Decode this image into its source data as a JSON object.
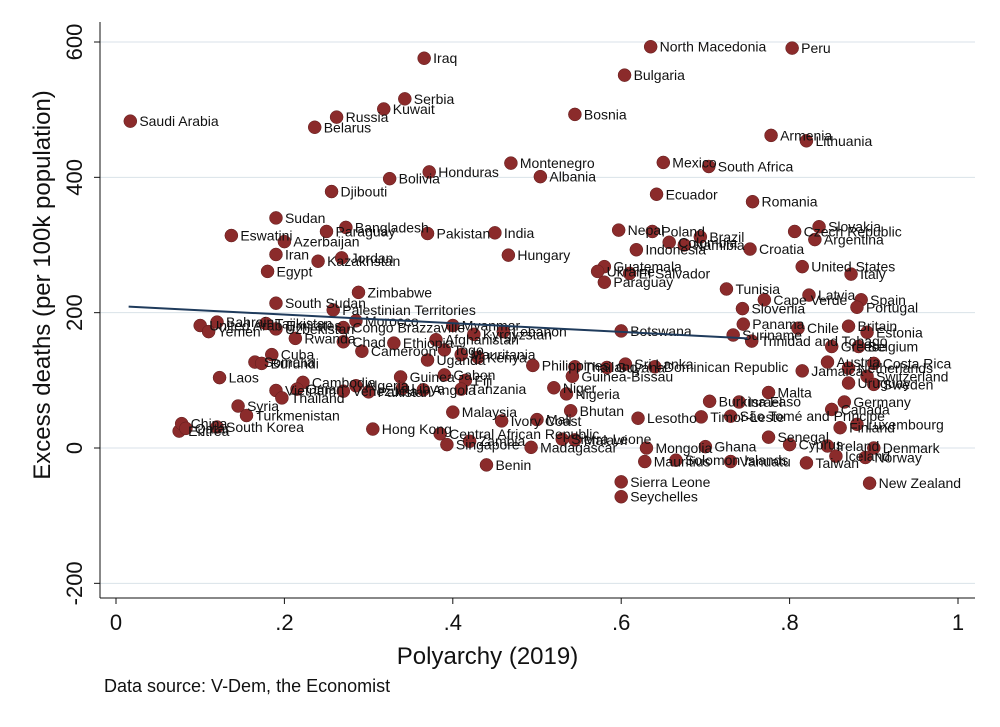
{
  "chart_data": {
    "type": "scatter",
    "xlabel": "Polyarchy (2019)",
    "ylabel": "Excess deaths (per 100k population)",
    "xlim": [
      0,
      1.0
    ],
    "ylim": [
      -200,
      620
    ],
    "xticks": [
      {
        "v": 0,
        "label": "0"
      },
      {
        "v": 0.2,
        "label": ".2"
      },
      {
        "v": 0.4,
        "label": ".4"
      },
      {
        "v": 0.6,
        "label": ".6"
      },
      {
        "v": 0.8,
        "label": ".8"
      },
      {
        "v": 1,
        "label": "1"
      }
    ],
    "yticks": [
      {
        "v": -200,
        "label": "-200"
      },
      {
        "v": 0,
        "label": "0"
      },
      {
        "v": 200,
        "label": "200"
      },
      {
        "v": 400,
        "label": "400"
      },
      {
        "v": 600,
        "label": "600"
      }
    ],
    "grid": true,
    "marker_color": "#8b2b2b",
    "fit_line": {
      "x": [
        0.015,
        0.75
      ],
      "y": [
        209,
        162
      ],
      "color": "#1f3b5c"
    },
    "points": [
      {
        "name": "Saudi Arabia",
        "x": 0.017,
        "y": 483
      },
      {
        "name": "Iraq",
        "x": 0.366,
        "y": 576
      },
      {
        "name": "Serbia",
        "x": 0.343,
        "y": 516
      },
      {
        "name": "Kuwait",
        "x": 0.318,
        "y": 501
      },
      {
        "name": "Russia",
        "x": 0.262,
        "y": 489
      },
      {
        "name": "Belarus",
        "x": 0.236,
        "y": 474
      },
      {
        "name": "North Macedonia",
        "x": 0.635,
        "y": 593
      },
      {
        "name": "Peru",
        "x": 0.803,
        "y": 591
      },
      {
        "name": "Bulgaria",
        "x": 0.604,
        "y": 551
      },
      {
        "name": "Bosnia",
        "x": 0.545,
        "y": 493
      },
      {
        "name": "Armenia",
        "x": 0.778,
        "y": 462
      },
      {
        "name": "Lithuania",
        "x": 0.82,
        "y": 454
      },
      {
        "name": "Montenegro",
        "x": 0.469,
        "y": 421
      },
      {
        "name": "Mexico",
        "x": 0.65,
        "y": 422
      },
      {
        "name": "South Africa",
        "x": 0.704,
        "y": 416
      },
      {
        "name": "Honduras",
        "x": 0.372,
        "y": 408
      },
      {
        "name": "Albania",
        "x": 0.504,
        "y": 401
      },
      {
        "name": "Bolivia",
        "x": 0.325,
        "y": 398
      },
      {
        "name": "Djibouti",
        "x": 0.256,
        "y": 379
      },
      {
        "name": "Ecuador",
        "x": 0.642,
        "y": 375
      },
      {
        "name": "Romania",
        "x": 0.756,
        "y": 364
      },
      {
        "name": "Sudan",
        "x": 0.19,
        "y": 340
      },
      {
        "name": "Bangladesh",
        "x": 0.273,
        "y": 326
      },
      {
        "name": "Paraguay",
        "x": 0.25,
        "y": 320
      },
      {
        "name": "Pakistan",
        "x": 0.37,
        "y": 317
      },
      {
        "name": "India",
        "x": 0.45,
        "y": 318
      },
      {
        "name": "Nepal",
        "x": 0.597,
        "y": 322
      },
      {
        "name": "Poland",
        "x": 0.637,
        "y": 320
      },
      {
        "name": "Brazil",
        "x": 0.694,
        "y": 312
      },
      {
        "name": "Slovakia",
        "x": 0.835,
        "y": 327
      },
      {
        "name": "Czech Republic",
        "x": 0.806,
        "y": 320
      },
      {
        "name": "Eswatini",
        "x": 0.137,
        "y": 314
      },
      {
        "name": "Azerbaijan",
        "x": 0.2,
        "y": 305
      },
      {
        "name": "Colombia",
        "x": 0.657,
        "y": 304
      },
      {
        "name": "Namibia",
        "x": 0.675,
        "y": 300
      },
      {
        "name": "Argentina",
        "x": 0.83,
        "y": 308
      },
      {
        "name": "Indonesia",
        "x": 0.618,
        "y": 293
      },
      {
        "name": "Croatia",
        "x": 0.753,
        "y": 294
      },
      {
        "name": "Hungary",
        "x": 0.466,
        "y": 285
      },
      {
        "name": "Iran",
        "x": 0.19,
        "y": 286
      },
      {
        "name": "Jordan",
        "x": 0.268,
        "y": 281
      },
      {
        "name": "Kazakhstan",
        "x": 0.24,
        "y": 276
      },
      {
        "name": "Guatemala",
        "x": 0.58,
        "y": 268
      },
      {
        "name": "United States",
        "x": 0.815,
        "y": 268
      },
      {
        "name": "Egypt",
        "x": 0.18,
        "y": 261
      },
      {
        "name": "Ukraine",
        "x": 0.572,
        "y": 261
      },
      {
        "name": "El Salvador",
        "x": 0.61,
        "y": 258
      },
      {
        "name": "Italy",
        "x": 0.873,
        "y": 257
      },
      {
        "name": "Paraguay",
        "x": 0.58,
        "y": 245
      },
      {
        "name": "Zimbabwe",
        "x": 0.288,
        "y": 230
      },
      {
        "name": "Tunisia",
        "x": 0.725,
        "y": 235
      },
      {
        "name": "Latvia",
        "x": 0.823,
        "y": 226
      },
      {
        "name": "Cape Verde",
        "x": 0.77,
        "y": 219
      },
      {
        "name": "Spain",
        "x": 0.885,
        "y": 219
      },
      {
        "name": "South Sudan",
        "x": 0.19,
        "y": 214
      },
      {
        "name": "Palestinian Territories",
        "x": 0.258,
        "y": 204
      },
      {
        "name": "Slovenia",
        "x": 0.744,
        "y": 206
      },
      {
        "name": "Portugal",
        "x": 0.88,
        "y": 208
      },
      {
        "name": "Bahrain",
        "x": 0.12,
        "y": 186
      },
      {
        "name": "United Arab Emirates",
        "x": 0.1,
        "y": 181
      },
      {
        "name": "Tajikistan",
        "x": 0.178,
        "y": 184
      },
      {
        "name": "Morocco",
        "x": 0.285,
        "y": 188
      },
      {
        "name": "Congo Brazzaville",
        "x": 0.27,
        "y": 178
      },
      {
        "name": "Myanmar",
        "x": 0.4,
        "y": 181
      },
      {
        "name": "Lebanon",
        "x": 0.46,
        "y": 172
      },
      {
        "name": "Kyrgyzstan",
        "x": 0.425,
        "y": 168
      },
      {
        "name": "Panama",
        "x": 0.745,
        "y": 183
      },
      {
        "name": "Chile",
        "x": 0.81,
        "y": 177
      },
      {
        "name": "Britain",
        "x": 0.87,
        "y": 180
      },
      {
        "name": "Estonia",
        "x": 0.892,
        "y": 171
      },
      {
        "name": "Botswana",
        "x": 0.6,
        "y": 173
      },
      {
        "name": "Yemen",
        "x": 0.11,
        "y": 172
      },
      {
        "name": "Uzbekistan",
        "x": 0.19,
        "y": 176
      },
      {
        "name": "Rwanda",
        "x": 0.213,
        "y": 162
      },
      {
        "name": "Chad",
        "x": 0.27,
        "y": 157
      },
      {
        "name": "Ethiopia",
        "x": 0.33,
        "y": 155
      },
      {
        "name": "Afghanistan",
        "x": 0.38,
        "y": 160
      },
      {
        "name": "Suriname",
        "x": 0.733,
        "y": 167
      },
      {
        "name": "Trinidad and Tobago",
        "x": 0.755,
        "y": 158
      },
      {
        "name": "Greece",
        "x": 0.85,
        "y": 150
      },
      {
        "name": "Belgium",
        "x": 0.882,
        "y": 150
      },
      {
        "name": "Cameroon",
        "x": 0.292,
        "y": 143
      },
      {
        "name": "Togo",
        "x": 0.39,
        "y": 145
      },
      {
        "name": "Cuba",
        "x": 0.185,
        "y": 138
      },
      {
        "name": "Somalia",
        "x": 0.165,
        "y": 127
      },
      {
        "name": "Burundi",
        "x": 0.173,
        "y": 125
      },
      {
        "name": "Uganda",
        "x": 0.37,
        "y": 130
      },
      {
        "name": "Mauritania",
        "x": 0.41,
        "y": 138
      },
      {
        "name": "Kenya",
        "x": 0.43,
        "y": 134
      },
      {
        "name": "Philippines",
        "x": 0.495,
        "y": 122
      },
      {
        "name": "Thailand",
        "x": 0.545,
        "y": 120
      },
      {
        "name": "Sri Lanka",
        "x": 0.605,
        "y": 124
      },
      {
        "name": "Guyana",
        "x": 0.583,
        "y": 119
      },
      {
        "name": "Dominican Republic",
        "x": 0.64,
        "y": 120
      },
      {
        "name": "Austria",
        "x": 0.845,
        "y": 127
      },
      {
        "name": "Costa Rica",
        "x": 0.9,
        "y": 125
      },
      {
        "name": "Netherlands",
        "x": 0.87,
        "y": 118
      },
      {
        "name": "Jamaica",
        "x": 0.815,
        "y": 114
      },
      {
        "name": "Switzerland",
        "x": 0.892,
        "y": 106
      },
      {
        "name": "Uruguay",
        "x": 0.87,
        "y": 96
      },
      {
        "name": "Sweden",
        "x": 0.9,
        "y": 94
      },
      {
        "name": "Laos",
        "x": 0.123,
        "y": 104
      },
      {
        "name": "Cambodia",
        "x": 0.222,
        "y": 97
      },
      {
        "name": "Algeria",
        "x": 0.285,
        "y": 92
      },
      {
        "name": "Guinea",
        "x": 0.338,
        "y": 105
      },
      {
        "name": "Gabon",
        "x": 0.39,
        "y": 108
      },
      {
        "name": "Fiji",
        "x": 0.415,
        "y": 100
      },
      {
        "name": "Guinea-Bissau",
        "x": 0.542,
        "y": 106
      },
      {
        "name": "Vietnam",
        "x": 0.19,
        "y": 85
      },
      {
        "name": "Oman",
        "x": 0.215,
        "y": 87
      },
      {
        "name": "Eritrea",
        "x": 0.075,
        "y": 25
      },
      {
        "name": "Turkmenistan",
        "x": 0.155,
        "y": 48
      },
      {
        "name": "Venezuela",
        "x": 0.27,
        "y": 84
      },
      {
        "name": "Pakistan",
        "x": 0.3,
        "y": 83
      },
      {
        "name": "Libya",
        "x": 0.34,
        "y": 88
      },
      {
        "name": "Angola",
        "x": 0.365,
        "y": 86
      },
      {
        "name": "Tanzania",
        "x": 0.41,
        "y": 87
      },
      {
        "name": "Niger",
        "x": 0.52,
        "y": 89
      },
      {
        "name": "Nigeria",
        "x": 0.535,
        "y": 80
      },
      {
        "name": "Thailand",
        "x": 0.197,
        "y": 74
      },
      {
        "name": "Malta",
        "x": 0.775,
        "y": 82
      },
      {
        "name": "Burkina Faso",
        "x": 0.705,
        "y": 69
      },
      {
        "name": "Israel",
        "x": 0.74,
        "y": 68
      },
      {
        "name": "Germany",
        "x": 0.865,
        "y": 68
      },
      {
        "name": "Syria",
        "x": 0.145,
        "y": 62
      },
      {
        "name": "Canada",
        "x": 0.85,
        "y": 57
      },
      {
        "name": "Malaysia",
        "x": 0.4,
        "y": 53
      },
      {
        "name": "Bhutan",
        "x": 0.54,
        "y": 55
      },
      {
        "name": "Ivory Coast",
        "x": 0.458,
        "y": 40
      },
      {
        "name": "Mali",
        "x": 0.5,
        "y": 42
      },
      {
        "name": "Lesotho",
        "x": 0.62,
        "y": 44
      },
      {
        "name": "Timor-Leste",
        "x": 0.695,
        "y": 46
      },
      {
        "name": "São Tomé and Príncipe",
        "x": 0.73,
        "y": 47
      },
      {
        "name": "Luxembourg",
        "x": 0.88,
        "y": 35
      },
      {
        "name": "Finland",
        "x": 0.86,
        "y": 30
      },
      {
        "name": "Hong Kong",
        "x": 0.305,
        "y": 28
      },
      {
        "name": "China",
        "x": 0.078,
        "y": 36
      },
      {
        "name": "Qatar",
        "x": 0.083,
        "y": 29
      },
      {
        "name": "South Korea",
        "x": 0.12,
        "y": 31
      },
      {
        "name": "Central African Republic",
        "x": 0.385,
        "y": 21
      },
      {
        "name": "Sierra Leone",
        "x": 0.53,
        "y": 13
      },
      {
        "name": "Malawi",
        "x": 0.545,
        "y": 12
      },
      {
        "name": "Senegal",
        "x": 0.775,
        "y": 16
      },
      {
        "name": "Singapore",
        "x": 0.393,
        "y": 5
      },
      {
        "name": "Zambia",
        "x": 0.42,
        "y": 10
      },
      {
        "name": "Madagascar",
        "x": 0.493,
        "y": 1
      },
      {
        "name": "Mongolia",
        "x": 0.63,
        "y": 0
      },
      {
        "name": "Ghana",
        "x": 0.7,
        "y": 2
      },
      {
        "name": "Cyprus",
        "x": 0.8,
        "y": 5
      },
      {
        "name": "Ireland",
        "x": 0.845,
        "y": 3
      },
      {
        "name": "Denmark",
        "x": 0.9,
        "y": 0
      },
      {
        "name": "Benin",
        "x": 0.44,
        "y": -25
      },
      {
        "name": "Mauritius",
        "x": 0.628,
        "y": -20
      },
      {
        "name": "Solomon Islands",
        "x": 0.665,
        "y": -18
      },
      {
        "name": "Vanuatu",
        "x": 0.73,
        "y": -20
      },
      {
        "name": "Taiwan",
        "x": 0.82,
        "y": -22
      },
      {
        "name": "Iceland",
        "x": 0.855,
        "y": -12
      },
      {
        "name": "Norway",
        "x": 0.89,
        "y": -14
      },
      {
        "name": "Seychelles",
        "x": 0.6,
        "y": -72
      },
      {
        "name": "Sierra Leone",
        "x": 0.6,
        "y": -50
      },
      {
        "name": "New Zealand",
        "x": 0.895,
        "y": -52
      }
    ]
  },
  "footer": {
    "source": "Data source: V-Dem, the Economist"
  }
}
